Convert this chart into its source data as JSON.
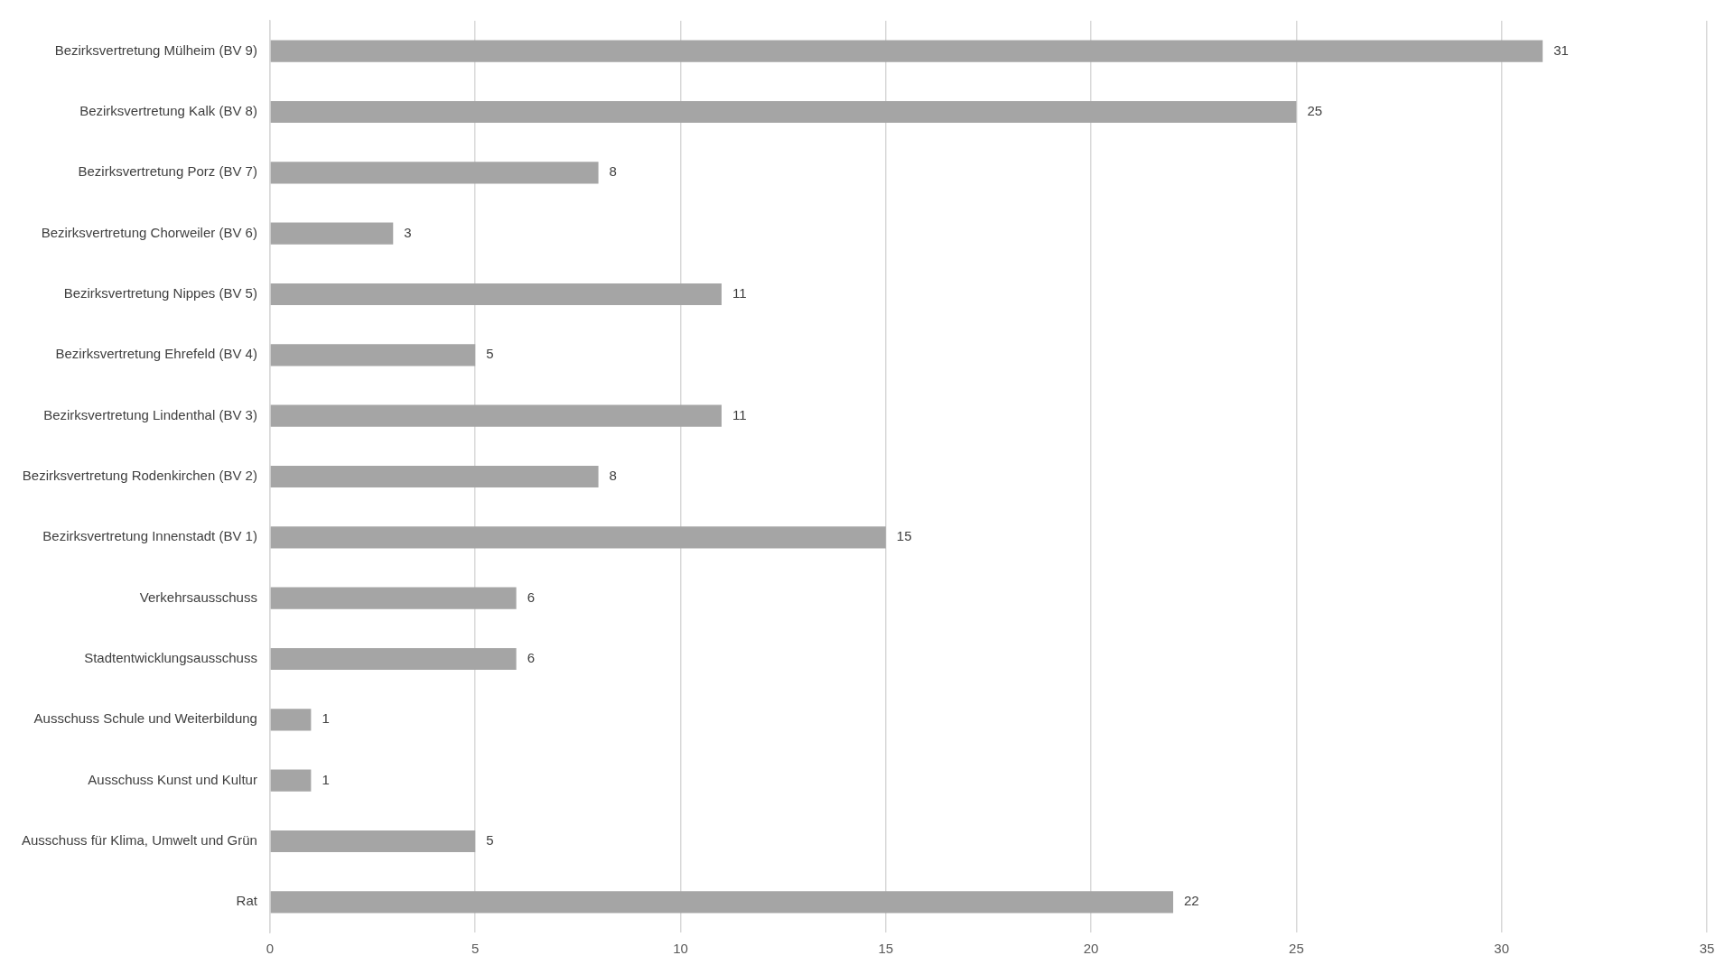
{
  "chart_data": {
    "type": "bar",
    "orientation": "horizontal",
    "categories": [
      "Bezirksvertretung Mülheim (BV 9)",
      "Bezirksvertretung Kalk (BV 8)",
      "Bezirksvertretung Porz (BV 7)",
      "Bezirksvertretung Chorweiler (BV 6)",
      "Bezirksvertretung Nippes (BV 5)",
      "Bezirksvertretung Ehrefeld (BV 4)",
      "Bezirksvertretung Lindenthal (BV 3)",
      "Bezirksvertretung Rodenkirchen (BV 2)",
      "Bezirksvertretung Innenstadt (BV 1)",
      "Verkehrsausschuss",
      "Stadtentwicklungsausschuss",
      "Ausschuss Schule und Weiterbildung",
      "Ausschuss Kunst und Kultur",
      "Ausschuss für Klima, Umwelt und Grün",
      "Rat"
    ],
    "values": [
      31,
      25,
      8,
      3,
      11,
      5,
      11,
      8,
      15,
      6,
      6,
      1,
      1,
      5,
      22
    ],
    "color": "#a5a5a5",
    "xlim": [
      0,
      35
    ],
    "xticks": [
      0,
      5,
      10,
      15,
      20,
      25,
      30,
      35
    ],
    "grid": "x",
    "data_labels": true
  }
}
